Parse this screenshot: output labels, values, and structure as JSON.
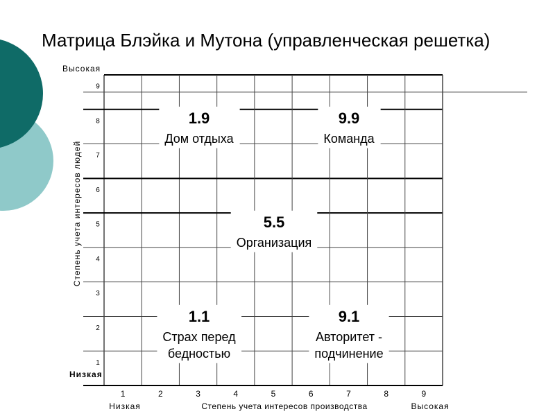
{
  "title": "Матрица Блэйка и Мутона (управленческая решетка)",
  "y_axis": {
    "title": "Степень учета интересов людей",
    "high": "Высокая",
    "low": "Низкая",
    "ticks": [
      1,
      2,
      3,
      4,
      5,
      6,
      7,
      8,
      9
    ]
  },
  "x_axis": {
    "title": "Степень учета интересов производства",
    "high": "Высокая",
    "low": "Низкая",
    "ticks": [
      1,
      2,
      3,
      4,
      5,
      6,
      7,
      8,
      9
    ]
  },
  "nodes": [
    {
      "code": "1.9",
      "lines": [
        "Дом отдыха"
      ]
    },
    {
      "code": "9.9",
      "lines": [
        "Команда"
      ]
    },
    {
      "code": "5.5",
      "lines": [
        "Организация"
      ]
    },
    {
      "code": "1.1",
      "lines": [
        "Страх перед",
        "бедностью"
      ]
    },
    {
      "code": "9.1",
      "lines": [
        "Авторитет -",
        "подчинение"
      ]
    }
  ]
}
